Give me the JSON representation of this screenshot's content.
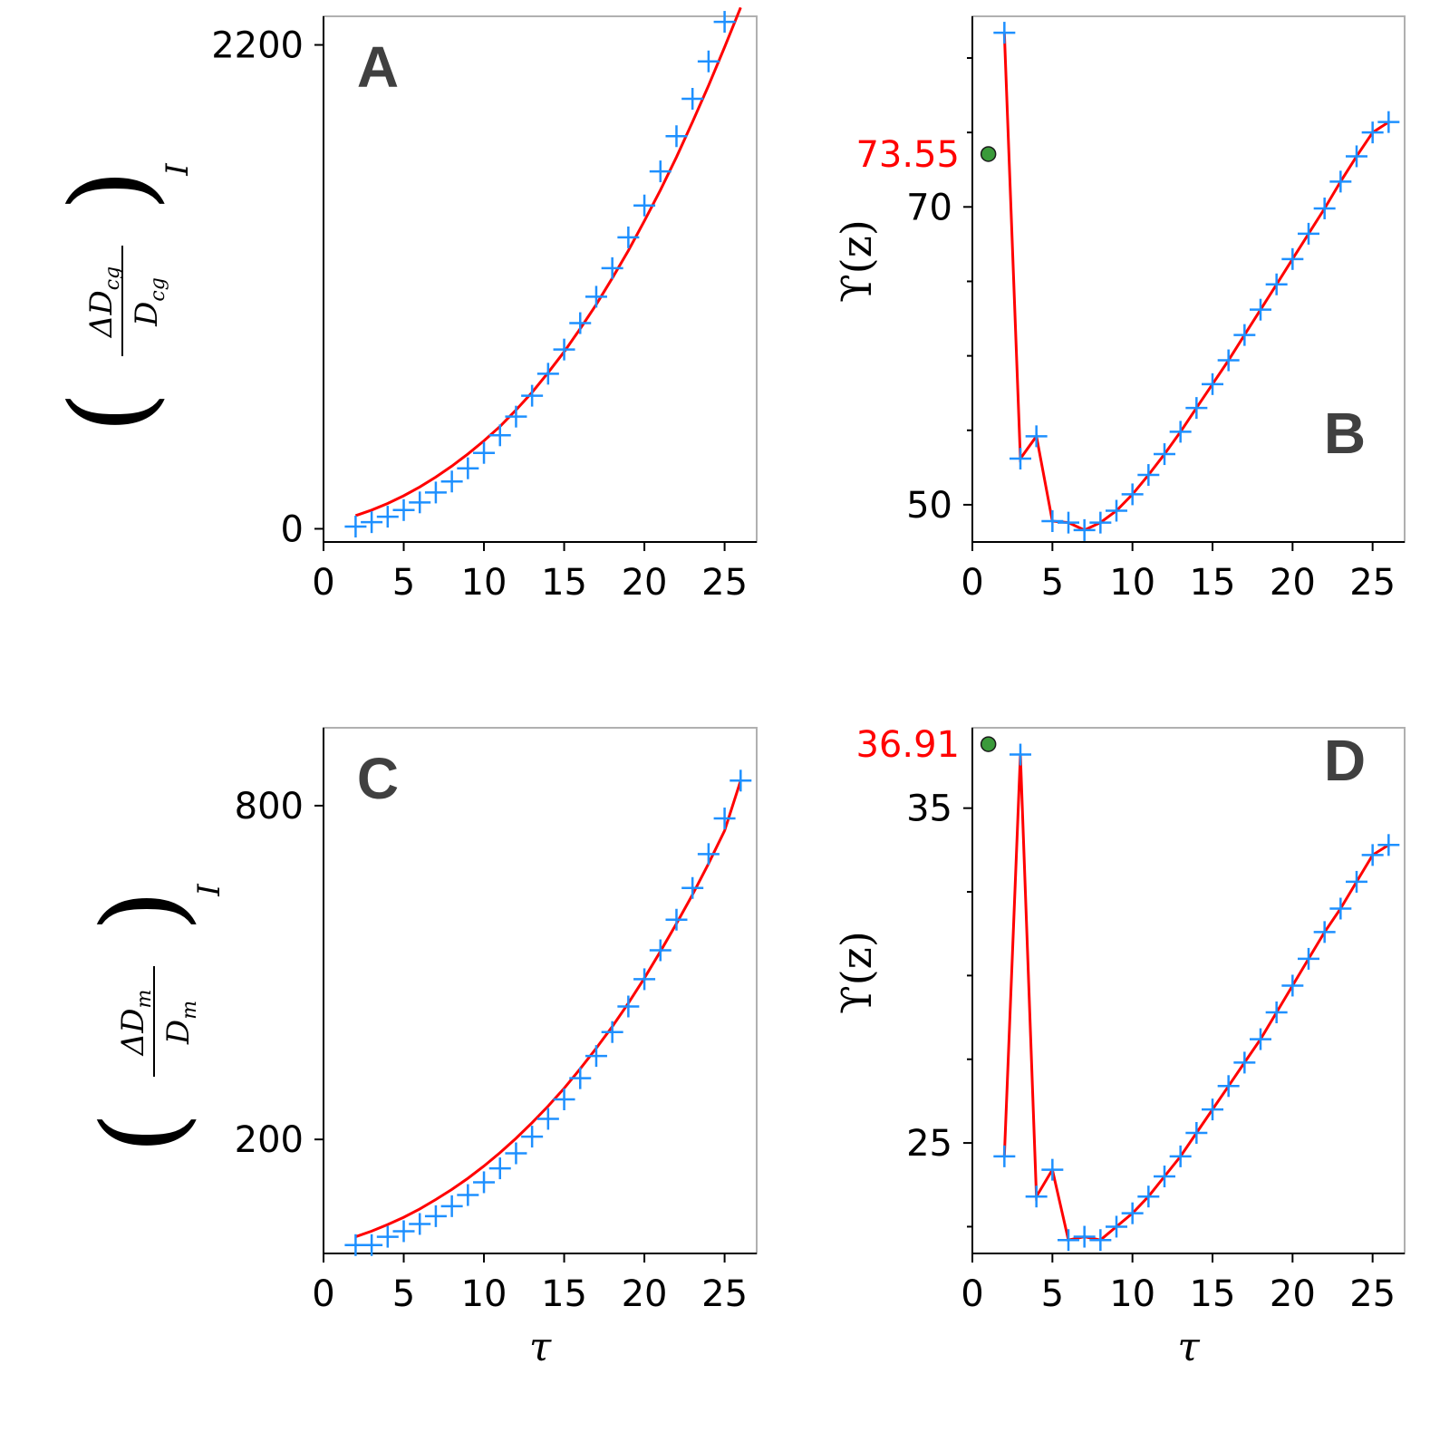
{
  "chart_data": [
    {
      "panel": "A",
      "type": "line",
      "ylabel_math": {
        "numerator": "ΔD",
        "numerator_sub": "cg",
        "denominator": "D",
        "denominator_sub": "cg",
        "subscript": "I"
      },
      "xlabel": "",
      "xlim": [
        0,
        27
      ],
      "ylim": [
        -60,
        2330
      ],
      "xticks": [
        0,
        5,
        10,
        15,
        20,
        25
      ],
      "yticks": [
        0,
        2200
      ],
      "colors": {
        "line": "#ff0000",
        "markers": "#1e90ff"
      },
      "series": [
        {
          "marker": "+",
          "x": [
            2,
            3,
            4,
            5,
            6,
            7,
            8,
            9,
            10,
            11,
            12,
            13,
            14,
            15,
            16,
            17,
            18,
            19,
            20,
            21,
            22,
            23,
            24,
            25,
            26
          ],
          "y": [
            10,
            30,
            55,
            85,
            120,
            165,
            215,
            275,
            345,
            425,
            510,
            605,
            705,
            815,
            935,
            1055,
            1185,
            1325,
            1470,
            1625,
            1785,
            1955,
            2125,
            2305,
            2480
          ]
        },
        {
          "line": true,
          "x": [
            2,
            3,
            4,
            5,
            6,
            7,
            8,
            9,
            10,
            11,
            12,
            13,
            14,
            15,
            16,
            17,
            18,
            19,
            20,
            21,
            22,
            23,
            24,
            25,
            26
          ],
          "y": [
            60,
            85,
            115,
            150,
            190,
            235,
            285,
            340,
            400,
            465,
            540,
            620,
            710,
            805,
            910,
            1020,
            1140,
            1265,
            1400,
            1540,
            1690,
            1850,
            2015,
            2190,
            2370
          ]
        }
      ]
    },
    {
      "panel": "B",
      "type": "line",
      "ylabel_math": {
        "text": "ϒ(z)"
      },
      "xlabel": "",
      "xlim": [
        0,
        27
      ],
      "ylim": [
        47.5,
        82.8
      ],
      "xticks": [
        0,
        5,
        10,
        15,
        20,
        25
      ],
      "yticks": [
        50,
        70
      ],
      "colors": {
        "line": "#ff0000",
        "markers": "#1e90ff",
        "special_point": "#3a9a3a",
        "special_label": "#ff0000"
      },
      "special_point": {
        "x": 1,
        "y": 73.55,
        "label": "73.55"
      },
      "series": [
        {
          "marker": "+",
          "x": [
            2,
            3,
            4,
            5,
            6,
            7,
            8,
            9,
            10,
            11,
            12,
            13,
            14,
            15,
            16,
            17,
            18,
            19,
            20,
            21,
            22,
            23,
            24,
            25,
            26
          ],
          "y": [
            81.7,
            53.1,
            54.6,
            48.9,
            48.8,
            48.3,
            48.8,
            49.6,
            50.7,
            52.0,
            53.4,
            54.9,
            56.5,
            58.1,
            59.7,
            61.4,
            63.1,
            64.8,
            66.5,
            68.2,
            69.9,
            71.7,
            73.4,
            75.0,
            75.7
          ]
        },
        {
          "line": true,
          "x": [
            2,
            3,
            4,
            5,
            6,
            7,
            8,
            9,
            10,
            11,
            12,
            13,
            14,
            15,
            16,
            17,
            18,
            19,
            20,
            21,
            22,
            23,
            24,
            25,
            26
          ],
          "y": [
            81.7,
            53.1,
            54.6,
            48.9,
            48.8,
            48.3,
            48.8,
            49.6,
            50.7,
            52.0,
            53.4,
            54.9,
            56.5,
            58.1,
            59.7,
            61.4,
            63.1,
            64.8,
            66.5,
            68.2,
            69.9,
            71.7,
            73.4,
            75.0,
            75.7
          ]
        }
      ]
    },
    {
      "panel": "C",
      "type": "line",
      "ylabel_math": {
        "numerator": "ΔD",
        "numerator_sub": "m",
        "denominator": "D",
        "denominator_sub": "m",
        "subscript": "I"
      },
      "xlabel": "τ",
      "xlim": [
        0,
        27
      ],
      "ylim": [
        -5,
        940
      ],
      "xticks": [
        0,
        5,
        10,
        15,
        20,
        25
      ],
      "yticks": [
        200,
        800
      ],
      "colors": {
        "line": "#ff0000",
        "markers": "#1e90ff"
      },
      "series": [
        {
          "marker": "+",
          "x": [
            2,
            3,
            4,
            5,
            6,
            7,
            8,
            9,
            10,
            11,
            12,
            13,
            14,
            15,
            16,
            17,
            18,
            19,
            20,
            21,
            22,
            23,
            24,
            25,
            26
          ],
          "y": [
            10,
            10,
            25,
            35,
            48,
            62,
            80,
            100,
            123,
            148,
            175,
            205,
            237,
            272,
            310,
            350,
            393,
            439,
            488,
            540,
            595,
            652,
            713,
            777,
            845
          ]
        },
        {
          "line": true,
          "x": [
            2,
            3,
            4,
            5,
            6,
            7,
            8,
            9,
            10,
            11,
            12,
            13,
            14,
            15,
            16,
            17,
            18,
            19,
            20,
            21,
            22,
            23,
            24,
            25,
            26
          ],
          "y": [
            25,
            35,
            47,
            60,
            75,
            92,
            110,
            130,
            152,
            176,
            202,
            230,
            260,
            292,
            327,
            364,
            403,
            445,
            490,
            538,
            588,
            640,
            696,
            755,
            845
          ]
        }
      ]
    },
    {
      "panel": "D",
      "type": "line",
      "ylabel_math": {
        "text": "ϒ(z)"
      },
      "xlabel": "τ",
      "xlim": [
        0,
        27
      ],
      "ylim": [
        21.7,
        37.4
      ],
      "xticks": [
        0,
        5,
        10,
        15,
        20,
        25
      ],
      "yticks": [
        25,
        35
      ],
      "colors": {
        "line": "#ff0000",
        "markers": "#1e90ff",
        "special_point": "#3a9a3a",
        "special_label": "#ff0000"
      },
      "special_point": {
        "x": 1,
        "y": 36.91,
        "label": "36.91"
      },
      "series": [
        {
          "marker": "+",
          "x": [
            2,
            3,
            4,
            5,
            6,
            7,
            8,
            9,
            10,
            11,
            12,
            13,
            14,
            15,
            16,
            17,
            18,
            19,
            20,
            21,
            22,
            23,
            24,
            25,
            26
          ],
          "y": [
            24.6,
            36.6,
            23.4,
            24.2,
            22.1,
            22.2,
            22.1,
            22.5,
            22.9,
            23.4,
            24.0,
            24.6,
            25.3,
            26.0,
            26.7,
            27.4,
            28.1,
            28.9,
            29.7,
            30.5,
            31.3,
            32.0,
            32.8,
            33.6,
            33.9
          ]
        },
        {
          "line": true,
          "x": [
            2,
            3,
            4,
            5,
            6,
            7,
            8,
            9,
            10,
            11,
            12,
            13,
            14,
            15,
            16,
            17,
            18,
            19,
            20,
            21,
            22,
            23,
            24,
            25,
            26
          ],
          "y": [
            24.6,
            36.6,
            23.4,
            24.2,
            22.1,
            22.2,
            22.1,
            22.5,
            22.9,
            23.4,
            24.0,
            24.6,
            25.3,
            26.0,
            26.7,
            27.4,
            28.1,
            28.9,
            29.7,
            30.5,
            31.3,
            32.0,
            32.8,
            33.6,
            33.9
          ]
        }
      ]
    }
  ]
}
